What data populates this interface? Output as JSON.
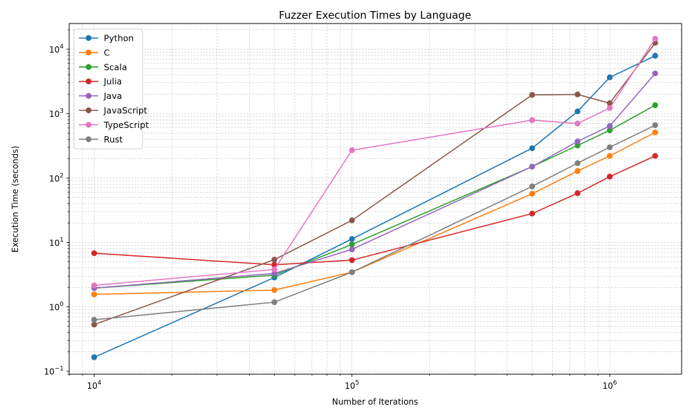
{
  "chart_data": {
    "type": "line",
    "title": "Fuzzer Execution Times by Language",
    "xlabel": "Number of Iterations",
    "ylabel": "Execution Time (seconds)",
    "xscale": "log",
    "yscale": "log",
    "xlim": [
      8000,
      1900000
    ],
    "ylim": [
      0.09,
      25000
    ],
    "grid": "both, major and minor, dashed gray",
    "legend_position": "upper left",
    "x_ticks": [
      {
        "value": 10000,
        "base": "10",
        "exp": "4"
      },
      {
        "value": 100000,
        "base": "10",
        "exp": "5"
      },
      {
        "value": 1000000,
        "base": "10",
        "exp": "6"
      }
    ],
    "y_ticks": [
      {
        "value": 0.1,
        "base": "10",
        "exp": "−1"
      },
      {
        "value": 1,
        "base": "10",
        "exp": "0"
      },
      {
        "value": 10,
        "base": "10",
        "exp": "1"
      },
      {
        "value": 100,
        "base": "10",
        "exp": "2"
      },
      {
        "value": 1000,
        "base": "10",
        "exp": "3"
      },
      {
        "value": 10000,
        "base": "10",
        "exp": "4"
      }
    ],
    "x": [
      10000,
      50000,
      100000,
      500000,
      750000,
      1000000,
      1500000
    ],
    "series": [
      {
        "name": "Python",
        "color": "#1f77b4",
        "values": [
          0.165,
          2.85,
          11.3,
          290,
          1080,
          3650,
          7900
        ]
      },
      {
        "name": "C",
        "color": "#ff7f0e",
        "values": [
          1.56,
          1.82,
          3.45,
          57,
          128,
          220,
          510
        ]
      },
      {
        "name": "Scala",
        "color": "#2ca02c",
        "values": [
          1.95,
          3.1,
          9.3,
          150,
          320,
          550,
          1350
        ]
      },
      {
        "name": "Julia",
        "color": "#d62728",
        "values": [
          6.8,
          4.5,
          5.3,
          28,
          58,
          105,
          220
        ]
      },
      {
        "name": "Java",
        "color": "#9467bd",
        "values": [
          1.95,
          3.3,
          7.8,
          150,
          370,
          640,
          4200
        ]
      },
      {
        "name": "JavaScript",
        "color": "#8c564b",
        "values": [
          0.53,
          5.4,
          22,
          1950,
          1980,
          1450,
          12500
        ]
      },
      {
        "name": "TypeScript",
        "color": "#e377c2",
        "values": [
          2.15,
          3.8,
          270,
          790,
          700,
          1220,
          14500
        ]
      },
      {
        "name": "Rust",
        "color": "#7f7f7f",
        "values": [
          0.63,
          1.18,
          3.45,
          74,
          170,
          300,
          660
        ]
      }
    ]
  }
}
